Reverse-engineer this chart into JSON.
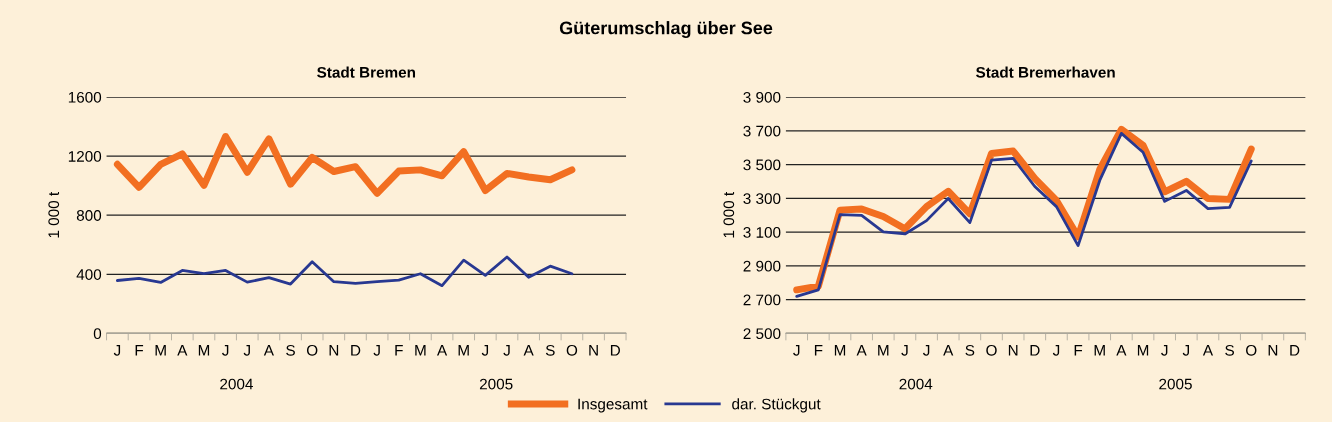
{
  "chart_data": [
    {
      "type": "line",
      "title": "Stadt Bremen",
      "ylabel": "1 000 t",
      "categories": [
        "J",
        "F",
        "M",
        "A",
        "M",
        "J",
        "J",
        "A",
        "S",
        "O",
        "N",
        "D",
        "J",
        "F",
        "M",
        "A",
        "M",
        "J",
        "J",
        "A",
        "S",
        "O",
        "N",
        "D"
      ],
      "series": [
        {
          "name": "Insgesamt",
          "color": "#f26f21",
          "values": [
            1145,
            989,
            1145,
            1215,
            1002,
            1333,
            1091,
            1317,
            1010,
            1191,
            1096,
            1129,
            948,
            1099,
            1107,
            1067,
            1231,
            967,
            1083,
            1059,
            1040,
            1107,
            null,
            null
          ]
        },
        {
          "name": "dar. Stückgut",
          "color": "#283891",
          "values": [
            358,
            372,
            345,
            426,
            404,
            426,
            347,
            377,
            334,
            485,
            350,
            339,
            350,
            361,
            404,
            323,
            496,
            393,
            517,
            380,
            455,
            404,
            null,
            null
          ]
        }
      ],
      "ylim": [
        0,
        1600
      ],
      "yticks": [
        0,
        400,
        800,
        1200,
        1600
      ],
      "grid": "y",
      "legend": "bottom",
      "annotations": [
        "2004",
        "2005",
        "Güterumschlag über See"
      ]
    },
    {
      "type": "line",
      "title": "Stadt Bremerhaven",
      "ylabel": "1 000 t",
      "categories": [
        "J",
        "F",
        "M",
        "A",
        "M",
        "J",
        "J",
        "A",
        "S",
        "O",
        "N",
        "D",
        "J",
        "F",
        "M",
        "A",
        "M",
        "J",
        "J",
        "A",
        "S",
        "O",
        "N",
        "D"
      ],
      "series": [
        {
          "color": "#f26f21",
          "values": [
            2758,
            2779,
            3230,
            3237,
            3192,
            3120,
            3251,
            3342,
            3208,
            3566,
            3580,
            3418,
            3287,
            3072,
            3471,
            3709,
            3614,
            3339,
            3401,
            3299,
            3294,
            3592,
            null,
            null
          ]
        },
        {
          "color": "#283891",
          "values": [
            2719,
            2758,
            3204,
            3199,
            3101,
            3089,
            3168,
            3299,
            3156,
            3526,
            3537,
            3370,
            3251,
            3020,
            3406,
            3685,
            3573,
            3282,
            3347,
            3239,
            3247,
            3521,
            null,
            null
          ]
        }
      ],
      "ylim": [
        2500,
        3900
      ],
      "yticks": [
        {
          "value": 2500,
          "label": "2 500"
        },
        {
          "value": 2700,
          "label": "2 700"
        },
        {
          "value": 2900,
          "label": "2 900"
        },
        {
          "value": 3100,
          "label": "3 100"
        },
        {
          "value": 3300,
          "label": "3 300"
        },
        {
          "value": 3500,
          "label": "3 500"
        },
        {
          "value": 3700,
          "label": "3 700"
        },
        {
          "value": 3900,
          "label": "3 900"
        }
      ],
      "grid": "y",
      "annotations": [
        "2004",
        "2005"
      ]
    }
  ]
}
